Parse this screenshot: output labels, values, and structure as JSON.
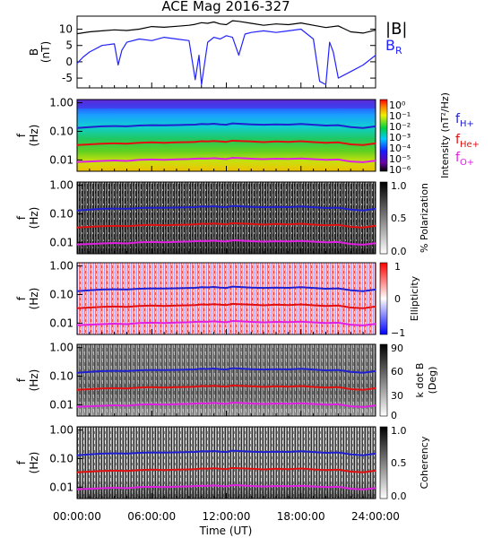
{
  "chart_data": [
    {
      "type": "line",
      "title": "ACE Mag 2016-327",
      "ylabel": "B (nT)",
      "ylim": [
        -8,
        14
      ],
      "yticks": [
        "10",
        "5",
        "0",
        "-5"
      ],
      "series": [
        {
          "name": "|B|",
          "color": "#000000",
          "x": [
            0,
            1,
            2,
            3,
            4,
            5,
            6,
            7,
            8,
            9,
            9.5,
            10,
            10.5,
            11,
            11.5,
            12,
            12.5,
            13,
            14,
            15,
            16,
            17,
            18,
            19,
            20,
            21,
            22,
            23,
            24
          ],
          "values": [
            8.6,
            9.2,
            9.5,
            9.8,
            9.6,
            10.0,
            10.8,
            10.6,
            10.9,
            11.2,
            11.5,
            12.0,
            11.8,
            12.2,
            11.6,
            11.4,
            12.6,
            12.4,
            11.8,
            11.2,
            11.6,
            11.4,
            11.9,
            11.2,
            10.5,
            11.0,
            9.2,
            8.8,
            9.7
          ]
        },
        {
          "name": "B",
          "subscript": "R",
          "color": "#2222ff",
          "x": [
            0,
            0.5,
            1,
            2,
            3,
            3.3,
            3.6,
            4,
            5,
            6,
            7,
            8,
            9,
            9.5,
            9.8,
            10,
            10.5,
            11,
            11.5,
            12,
            12.5,
            13,
            13.5,
            14,
            15,
            16,
            17,
            18,
            19,
            19.5,
            20,
            20.3,
            20.6,
            21,
            22,
            23,
            24
          ],
          "values": [
            -0.5,
            1.5,
            3.0,
            5.0,
            5.5,
            -1.0,
            3.5,
            6.0,
            7.0,
            6.5,
            7.5,
            7.0,
            6.5,
            -5.5,
            2.0,
            -7.0,
            6.0,
            7.5,
            7.0,
            8.0,
            7.5,
            2.0,
            8.5,
            9.0,
            9.5,
            9.0,
            9.5,
            10.0,
            7.0,
            -6.0,
            -7.0,
            6.0,
            3.0,
            -5.0,
            -3.0,
            -1.0,
            2.0
          ]
        }
      ]
    },
    {
      "type": "heatmap",
      "ylabel": "f (Hz)",
      "yticks": [
        "1.00",
        "0.10",
        "0.01"
      ],
      "colorbar": {
        "label": "Intensity (nT²/Hz)",
        "ticks": [
          "10⁰",
          "10⁻¹",
          "10⁻²",
          "10⁻³",
          "10⁻⁴",
          "10⁻⁵",
          "10⁻⁶"
        ],
        "scale": "log"
      },
      "legend": [
        "f_H+",
        "f_He+",
        "f_O+"
      ]
    },
    {
      "type": "heatmap",
      "ylabel": "f (Hz)",
      "yticks": [
        "1.00",
        "0.10",
        "0.01"
      ],
      "colorbar": {
        "label": "% Polarization",
        "ticks": [
          "1.0",
          "0.5",
          "0.0"
        ]
      }
    },
    {
      "type": "heatmap",
      "ylabel": "f (Hz)",
      "yticks": [
        "1.00",
        "0.10",
        "0.01"
      ],
      "colorbar": {
        "label": "Ellipticity",
        "ticks": [
          "1",
          "0",
          "−1"
        ]
      }
    },
    {
      "type": "heatmap",
      "ylabel": "f (Hz)",
      "yticks": [
        "1.00",
        "0.10",
        "0.01"
      ],
      "colorbar": {
        "label": "k dot B (Deg)",
        "ticks": [
          "90",
          "60",
          "30",
          "0"
        ]
      }
    },
    {
      "type": "heatmap",
      "ylabel": "f (Hz)",
      "yticks": [
        "1.00",
        "0.10",
        "0.01"
      ],
      "colorbar": {
        "label": "Coherency",
        "ticks": [
          "1.0",
          "0.5",
          "0.0"
        ]
      },
      "xlabel": "Time (UT)",
      "xticks": [
        "00:00:00",
        "06:00:00",
        "12:00:00",
        "18:00:00",
        "24:00:00"
      ],
      "xlim": [
        0,
        24
      ]
    }
  ],
  "gyrofrequency_lines": {
    "x": [
      0,
      1,
      2,
      3,
      4,
      5,
      6,
      7,
      8,
      9,
      9.5,
      10,
      10.5,
      11,
      11.5,
      12,
      12.5,
      13,
      14,
      15,
      16,
      17,
      18,
      19,
      20,
      21,
      22,
      23,
      24
    ],
    "f_H+": [
      0.13,
      0.14,
      0.15,
      0.153,
      0.15,
      0.16,
      0.165,
      0.162,
      0.166,
      0.17,
      0.172,
      0.18,
      0.178,
      0.185,
      0.175,
      0.17,
      0.19,
      0.185,
      0.175,
      0.17,
      0.175,
      0.172,
      0.18,
      0.17,
      0.16,
      0.165,
      0.14,
      0.13,
      0.15
    ],
    "f_He+": [
      0.033,
      0.035,
      0.037,
      0.038,
      0.037,
      0.04,
      0.041,
      0.04,
      0.041,
      0.042,
      0.043,
      0.045,
      0.044,
      0.046,
      0.044,
      0.043,
      0.047,
      0.046,
      0.044,
      0.042,
      0.044,
      0.043,
      0.045,
      0.042,
      0.04,
      0.041,
      0.035,
      0.033,
      0.038
    ],
    "f_O+": [
      0.0085,
      0.0088,
      0.0092,
      0.0095,
      0.0092,
      0.01,
      0.0103,
      0.0101,
      0.0104,
      0.0107,
      0.011,
      0.0112,
      0.0111,
      0.0115,
      0.011,
      0.0107,
      0.0118,
      0.0116,
      0.011,
      0.0106,
      0.011,
      0.0108,
      0.0112,
      0.0106,
      0.01,
      0.0103,
      0.0088,
      0.0083,
      0.0094
    ]
  },
  "legend_colors": {
    "f_H+": "#2020d0",
    "f_He+": "#e01010",
    "f_O+": "#e020e0"
  }
}
